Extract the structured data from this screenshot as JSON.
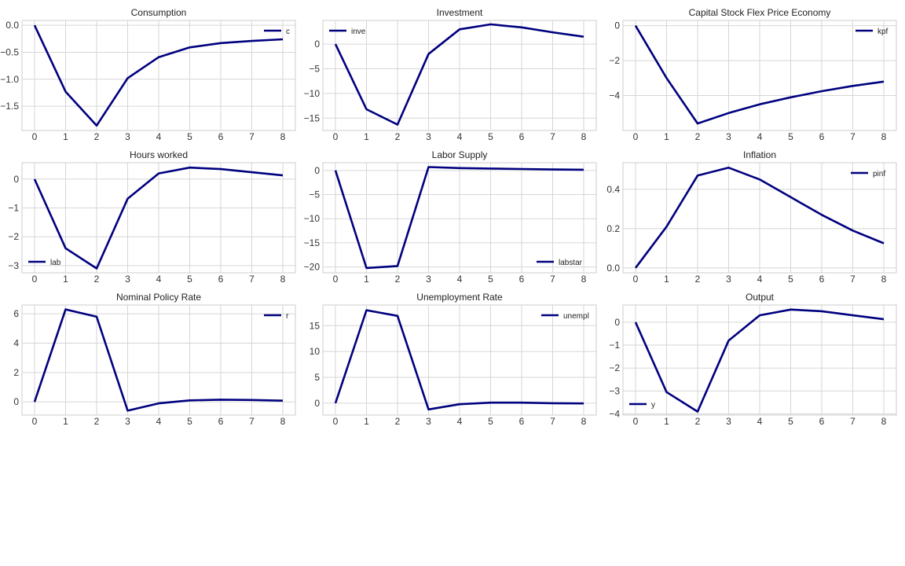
{
  "colors": {
    "line": "#00007f",
    "grid": "#d6d6d6",
    "frame": "#cccccc",
    "text": "#222222"
  },
  "chart_data": [
    {
      "type": "line",
      "title": "Consumption",
      "x": [
        0,
        1,
        2,
        3,
        4,
        5,
        6,
        7,
        8
      ],
      "series": [
        {
          "name": "c",
          "values": [
            0.0,
            -1.23,
            -1.86,
            -0.98,
            -0.59,
            -0.41,
            -0.33,
            -0.29,
            -0.26
          ]
        }
      ],
      "ylim": [
        -1.95,
        0.09
      ],
      "yticks": [
        0.0,
        -0.5,
        -1.0,
        -1.5
      ],
      "ytick_labels": [
        "0.0",
        "−0.5",
        "−1.0",
        "−1.5"
      ],
      "xticks": [
        0,
        1,
        2,
        3,
        4,
        5,
        6,
        7,
        8
      ],
      "legend": "top-right",
      "grid": true
    },
    {
      "type": "line",
      "title": "Investment",
      "x": [
        0,
        1,
        2,
        3,
        4,
        5,
        6,
        7,
        8
      ],
      "series": [
        {
          "name": "inve",
          "values": [
            0.0,
            -13.2,
            -16.3,
            -2.0,
            3.0,
            4.0,
            3.4,
            2.4,
            1.5
          ]
        }
      ],
      "ylim": [
        -17.5,
        4.8
      ],
      "yticks": [
        0,
        -5,
        -10,
        -15
      ],
      "ytick_labels": [
        "0",
        "−5",
        "−10",
        "−15"
      ],
      "xticks": [
        0,
        1,
        2,
        3,
        4,
        5,
        6,
        7,
        8
      ],
      "legend": "top-left",
      "grid": true
    },
    {
      "type": "line",
      "title": "Capital Stock Flex Price Economy",
      "x": [
        0,
        1,
        2,
        3,
        4,
        5,
        6,
        7,
        8
      ],
      "series": [
        {
          "name": "kpf",
          "values": [
            0.0,
            -3.0,
            -5.6,
            -5.0,
            -4.5,
            -4.1,
            -3.75,
            -3.45,
            -3.2
          ]
        }
      ],
      "ylim": [
        -6.0,
        0.3
      ],
      "yticks": [
        0,
        -2,
        -4
      ],
      "ytick_labels": [
        "0",
        "−2",
        "−4"
      ],
      "xticks": [
        0,
        1,
        2,
        3,
        4,
        5,
        6,
        7,
        8
      ],
      "legend": "top-right",
      "grid": true
    },
    {
      "type": "line",
      "title": "Hours worked",
      "x": [
        0,
        1,
        2,
        3,
        4,
        5,
        6,
        7,
        8
      ],
      "series": [
        {
          "name": "lab",
          "values": [
            0.0,
            -2.4,
            -3.1,
            -0.68,
            0.2,
            0.4,
            0.35,
            0.24,
            0.13
          ]
        }
      ],
      "ylim": [
        -3.25,
        0.57
      ],
      "yticks": [
        0,
        -1,
        -2,
        -3
      ],
      "ytick_labels": [
        "0",
        "−1",
        "−2",
        "−3"
      ],
      "xticks": [
        0,
        1,
        2,
        3,
        4,
        5,
        6,
        7,
        8
      ],
      "legend": "bottom-left",
      "grid": true
    },
    {
      "type": "line",
      "title": "Labor Supply",
      "x": [
        0,
        1,
        2,
        3,
        4,
        5,
        6,
        7,
        8
      ],
      "series": [
        {
          "name": "labstar",
          "values": [
            0.0,
            -20.2,
            -19.8,
            0.7,
            0.5,
            0.4,
            0.3,
            0.2,
            0.15
          ]
        }
      ],
      "ylim": [
        -21.2,
        1.6
      ],
      "yticks": [
        0,
        -5,
        -10,
        -15,
        -20
      ],
      "ytick_labels": [
        "0",
        "−5",
        "−10",
        "−15",
        "−20"
      ],
      "xticks": [
        0,
        1,
        2,
        3,
        4,
        5,
        6,
        7,
        8
      ],
      "legend": "bottom-right",
      "grid": true
    },
    {
      "type": "line",
      "title": "Inflation",
      "x": [
        0,
        1,
        2,
        3,
        4,
        5,
        6,
        7,
        8
      ],
      "series": [
        {
          "name": "pinf",
          "values": [
            0.0,
            0.21,
            0.47,
            0.51,
            0.45,
            0.36,
            0.27,
            0.19,
            0.125
          ]
        }
      ],
      "ylim": [
        -0.025,
        0.535
      ],
      "yticks": [
        0.0,
        0.2,
        0.4
      ],
      "ytick_labels": [
        "0.0",
        "0.2",
        "0.4"
      ],
      "xticks": [
        0,
        1,
        2,
        3,
        4,
        5,
        6,
        7,
        8
      ],
      "legend": "top-right",
      "grid": true
    },
    {
      "type": "line",
      "title": "Nominal Policy Rate",
      "x": [
        0,
        1,
        2,
        3,
        4,
        5,
        6,
        7,
        8
      ],
      "series": [
        {
          "name": "r",
          "values": [
            0.0,
            6.3,
            5.8,
            -0.6,
            -0.1,
            0.1,
            0.15,
            0.13,
            0.08
          ]
        }
      ],
      "ylim": [
        -0.9,
        6.6
      ],
      "yticks": [
        0,
        2,
        4,
        6
      ],
      "ytick_labels": [
        "0",
        "2",
        "4",
        "6"
      ],
      "xticks": [
        0,
        1,
        2,
        3,
        4,
        5,
        6,
        7,
        8
      ],
      "legend": "top-right",
      "grid": true
    },
    {
      "type": "line",
      "title": "Unemployment Rate",
      "x": [
        0,
        1,
        2,
        3,
        4,
        5,
        6,
        7,
        8
      ],
      "series": [
        {
          "name": "unempl",
          "values": [
            0.0,
            18.0,
            16.9,
            -1.2,
            -0.2,
            0.1,
            0.1,
            0.0,
            -0.05
          ]
        }
      ],
      "ylim": [
        -2.3,
        19.0
      ],
      "yticks": [
        0,
        5,
        10,
        15
      ],
      "ytick_labels": [
        "0",
        "5",
        "10",
        "15"
      ],
      "xticks": [
        0,
        1,
        2,
        3,
        4,
        5,
        6,
        7,
        8
      ],
      "legend": "top-right",
      "grid": true
    },
    {
      "type": "line",
      "title": "Output",
      "x": [
        0,
        1,
        2,
        3,
        4,
        5,
        6,
        7,
        8
      ],
      "series": [
        {
          "name": "y",
          "values": [
            0.0,
            -3.05,
            -3.9,
            -0.8,
            0.3,
            0.55,
            0.48,
            0.3,
            0.13
          ]
        }
      ],
      "ylim": [
        -4.05,
        0.75
      ],
      "yticks": [
        0,
        -1,
        -2,
        -3,
        -4
      ],
      "ytick_labels": [
        "0",
        "−1",
        "−2",
        "−3",
        "−4"
      ],
      "xticks": [
        0,
        1,
        2,
        3,
        4,
        5,
        6,
        7,
        8
      ],
      "legend": "bottom-left",
      "grid": true
    }
  ]
}
